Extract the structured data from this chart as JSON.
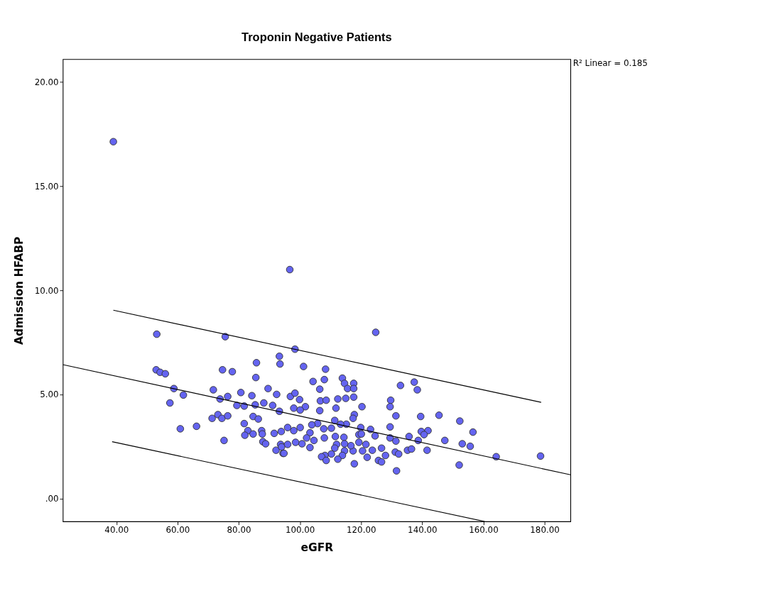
{
  "chart_data": {
    "type": "scatter",
    "title": "Troponin Negative Patients",
    "xlabel": "eGFR",
    "ylabel": "Admission HFABP",
    "annotations": [
      "R² Linear = 0.185"
    ],
    "xlim": [
      22.5,
      188.5
    ],
    "ylim": [
      -1.09,
      21.1
    ],
    "xticks": [
      {
        "value": 40,
        "label": "40.00"
      },
      {
        "value": 60,
        "label": "60.00"
      },
      {
        "value": 80,
        "label": "80.00"
      },
      {
        "value": 100,
        "label": "100.00"
      },
      {
        "value": 120,
        "label": "120.00"
      },
      {
        "value": 140,
        "label": "140.00"
      },
      {
        "value": 160,
        "label": "160.00"
      },
      {
        "value": 180,
        "label": "180.00"
      }
    ],
    "yticks": [
      {
        "value": 0,
        "label": ".00"
      },
      {
        "value": 5,
        "label": "5.00"
      },
      {
        "value": 10,
        "label": "10.00"
      },
      {
        "value": 15,
        "label": "15.00"
      },
      {
        "value": 20,
        "label": "20.00"
      }
    ],
    "grid": false,
    "series": [
      {
        "marker": "circle",
        "color": "#6464f0",
        "x": [
          39.0,
          96.7,
          124.8,
          53.2,
          75.6,
          93.3,
          93.5,
          85.8,
          85.6,
          53.0,
          54.3,
          56.0,
          74.7,
          77.9,
          58.8,
          61.9,
          57.5,
          71.7,
          80.7,
          76.4,
          73.9,
          84.3,
          89.6,
          92.4,
          79.4,
          81.8,
          85.4,
          88.2,
          91.1,
          93.3,
          84.7,
          86.4,
          71.3,
          73.2,
          74.5,
          76.4,
          60.9,
          66.2,
          75.2,
          81.8,
          83.0,
          82.0,
          84.7,
          87.5,
          87.7,
          91.6,
          93.9,
          87.9,
          88.8,
          92.2,
          93.7,
          94.5,
          98.4,
          101.2,
          108.4,
          104.3,
          108.0,
          106.5,
          113.9,
          114.6,
          117.6,
          115.6,
          117.6,
          106.7,
          108.6,
          112.4,
          115.0,
          117.6,
          96.9,
          98.4,
          99.9,
          101.8,
          98.0,
          100.1,
          106.5,
          111.8,
          120.3,
          129.7,
          129.5,
          132.9,
          137.4,
          138.4,
          131.4,
          139.5,
          145.5,
          117.8,
          117.4,
          111.4,
          115.2,
          119.9,
          123.1,
          113.3,
          105.8,
          103.9,
          110.3,
          107.8,
          98.0,
          100.1,
          96.0,
          103.3,
          108.0,
          111.6,
          114.4,
          119.3,
          120.1,
          124.6,
          129.5,
          129.5,
          131.4,
          135.7,
          138.7,
          139.7,
          141.9,
          140.6,
          135.2,
          136.5,
          141.6,
          131.2,
          132.3,
          126.7,
          128.0,
          125.7,
          126.7,
          131.6,
          122.0,
          123.7,
          120.5,
          121.6,
          119.3,
          117.4,
          116.7,
          114.6,
          112.0,
          111.4,
          114.6,
          113.9,
          112.4,
          117.8,
          110.3,
          108.2,
          107.1,
          108.6,
          104.6,
          103.3,
          100.7,
          98.6,
          96.0,
          94.8,
          94.0,
          102.2,
          152.3,
          156.6,
          147.4,
          153.1,
          155.7,
          164.2,
          178.7,
          152.1
        ],
        "values": [
          17.14,
          11.0,
          7.99,
          7.9,
          7.78,
          6.84,
          6.47,
          6.53,
          5.82,
          6.19,
          6.07,
          6.0,
          6.19,
          6.1,
          5.29,
          4.98,
          4.6,
          5.23,
          5.1,
          4.91,
          4.79,
          4.95,
          5.29,
          5.01,
          4.48,
          4.45,
          4.51,
          4.6,
          4.48,
          4.2,
          3.95,
          3.83,
          3.86,
          4.04,
          3.86,
          3.98,
          3.36,
          3.48,
          2.8,
          3.61,
          3.27,
          3.05,
          3.11,
          3.27,
          3.11,
          3.14,
          3.23,
          2.74,
          2.64,
          2.33,
          2.61,
          2.18,
          7.18,
          6.35,
          6.22,
          5.63,
          5.72,
          5.26,
          5.79,
          5.54,
          5.54,
          5.29,
          5.29,
          4.7,
          4.73,
          4.79,
          4.82,
          4.88,
          4.91,
          5.07,
          4.76,
          4.42,
          4.35,
          4.26,
          4.23,
          4.35,
          4.42,
          4.73,
          4.42,
          5.44,
          5.6,
          5.23,
          3.98,
          3.95,
          4.01,
          4.04,
          3.86,
          3.76,
          3.58,
          3.42,
          3.33,
          3.58,
          3.61,
          3.55,
          3.39,
          3.36,
          3.27,
          3.42,
          3.42,
          3.17,
          2.92,
          2.99,
          2.95,
          3.08,
          3.11,
          3.02,
          3.45,
          2.92,
          2.77,
          2.99,
          2.8,
          3.23,
          3.27,
          3.08,
          2.33,
          2.39,
          2.33,
          2.24,
          2.15,
          2.43,
          2.08,
          1.84,
          1.77,
          1.34,
          1.99,
          2.33,
          2.3,
          2.61,
          2.71,
          2.3,
          2.55,
          2.64,
          2.61,
          2.43,
          2.3,
          2.08,
          1.9,
          1.68,
          2.15,
          2.08,
          2.02,
          1.84,
          2.8,
          2.46,
          2.64,
          2.71,
          2.61,
          2.18,
          2.49,
          2.92,
          3.73,
          3.2,
          2.8,
          2.64,
          2.52,
          2.02,
          2.05,
          1.62
        ]
      },
      {
        "type": "line",
        "color": "#000000",
        "marker": "none",
        "x": [
          22.5,
          188.5
        ],
        "values": [
          6.44,
          1.15
        ]
      },
      {
        "type": "line",
        "color": "#000000",
        "marker": "none",
        "x": [
          39.0,
          178.9
        ],
        "values": [
          9.05,
          4.63
        ]
      },
      {
        "type": "line",
        "color": "#000000",
        "marker": "none",
        "x": [
          38.6,
          160.4
        ],
        "values": [
          2.74,
          -1.09
        ]
      }
    ]
  }
}
